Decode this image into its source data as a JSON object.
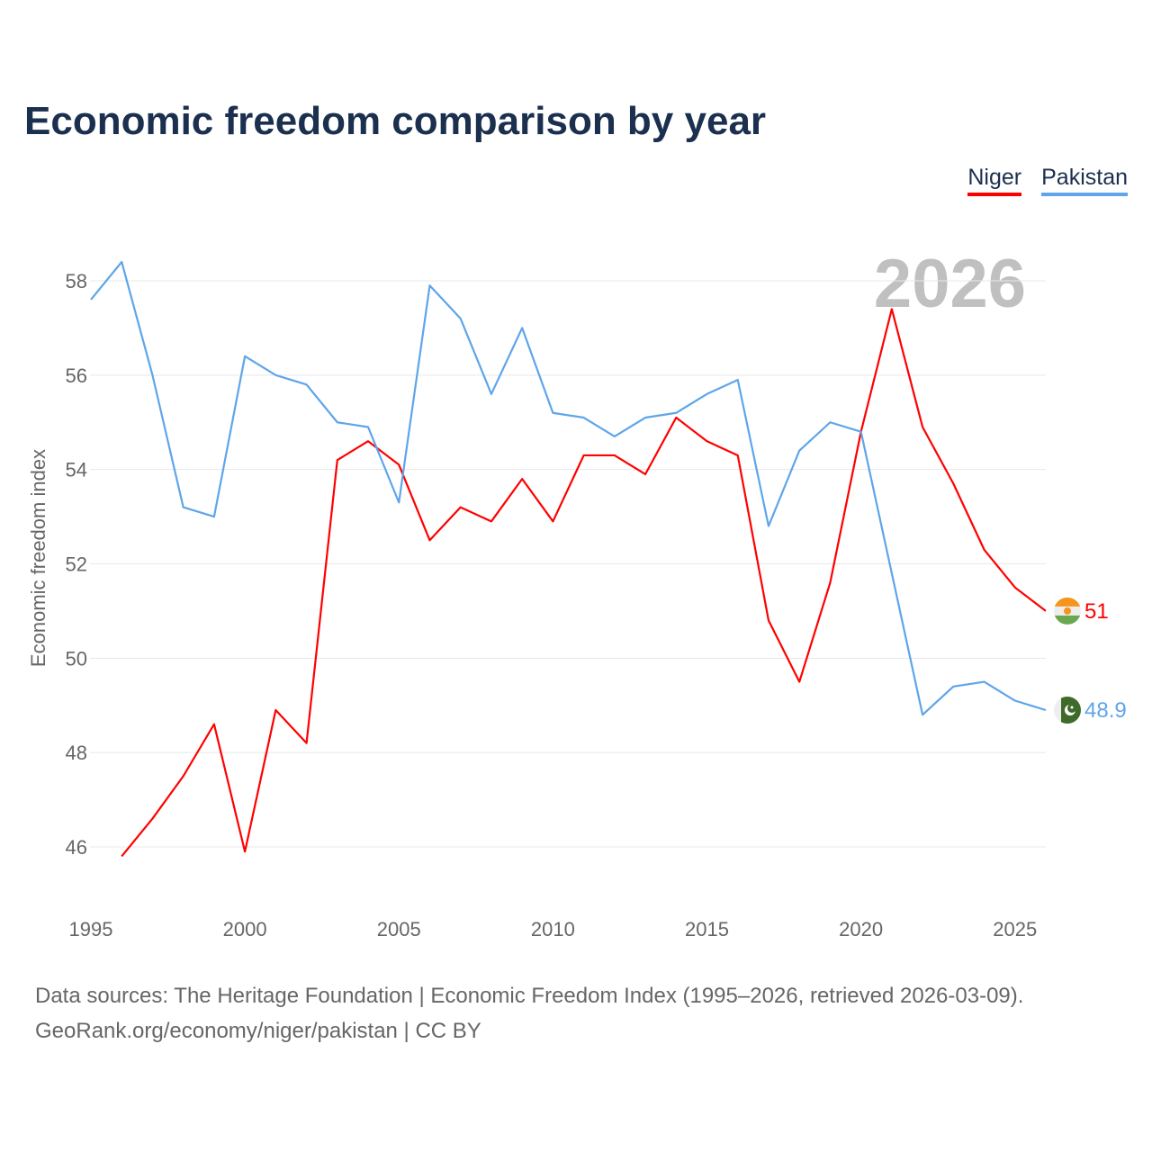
{
  "chart_data": {
    "type": "line",
    "title": "Economic freedom comparison by year",
    "ylabel": "Economic freedom index",
    "xlabel": "",
    "watermark_year": "2026",
    "ylim": [
      44.8,
      58.8
    ],
    "xlim": [
      1995,
      2026
    ],
    "yticks": [
      46,
      48,
      50,
      52,
      54,
      56,
      58
    ],
    "xticks": [
      1995,
      2000,
      2005,
      2010,
      2015,
      2020,
      2025
    ],
    "grid": true,
    "legend_position": "top-right",
    "series": [
      {
        "name": "Niger",
        "color": "#ff0000",
        "end_label": "51",
        "x": [
          1996,
          1997,
          1998,
          1999,
          2000,
          2001,
          2002,
          2003,
          2004,
          2005,
          2006,
          2007,
          2008,
          2009,
          2010,
          2011,
          2012,
          2013,
          2014,
          2015,
          2016,
          2017,
          2018,
          2019,
          2020,
          2021,
          2022,
          2023,
          2024,
          2025,
          2026
        ],
        "values": [
          45.8,
          46.6,
          47.5,
          48.6,
          45.9,
          48.9,
          48.2,
          54.2,
          54.6,
          54.1,
          52.5,
          53.2,
          52.9,
          53.8,
          52.9,
          54.3,
          54.3,
          53.9,
          55.1,
          54.6,
          54.3,
          50.8,
          49.5,
          51.6,
          54.8,
          57.4,
          54.9,
          53.7,
          52.3,
          51.5,
          51.0
        ]
      },
      {
        "name": "Pakistan",
        "color": "#5ea5ea",
        "end_label": "48.9",
        "x": [
          1995,
          1996,
          1997,
          1998,
          1999,
          2000,
          2001,
          2002,
          2003,
          2004,
          2005,
          2006,
          2007,
          2008,
          2009,
          2010,
          2011,
          2012,
          2013,
          2014,
          2015,
          2016,
          2017,
          2018,
          2019,
          2020,
          2021,
          2022,
          2023,
          2024,
          2025,
          2026
        ],
        "values": [
          57.6,
          58.4,
          56.0,
          53.2,
          53.0,
          56.4,
          56.0,
          55.8,
          55.0,
          54.9,
          53.3,
          57.9,
          57.2,
          55.6,
          57.0,
          55.2,
          55.1,
          54.7,
          55.1,
          55.2,
          55.6,
          55.9,
          52.8,
          54.4,
          55.0,
          54.8,
          51.8,
          48.8,
          49.4,
          49.5,
          49.1,
          48.9
        ]
      }
    ]
  },
  "source": {
    "line1": "Data sources: The Heritage Foundation | Economic Freedom Index (1995–2026, retrieved 2026-03-09).",
    "line2": "GeoRank.org/economy/niger/pakistan | CC BY"
  }
}
